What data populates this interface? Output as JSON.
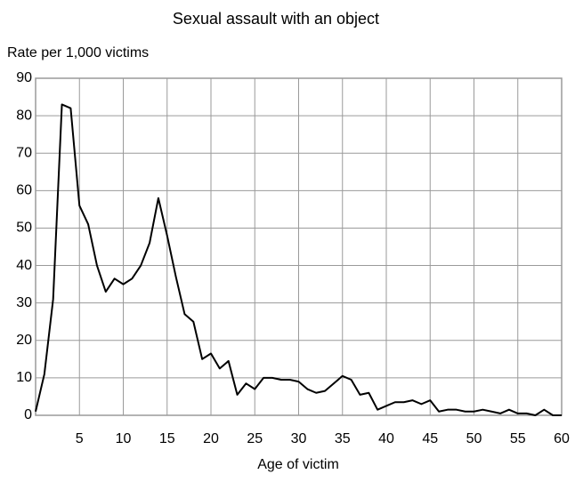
{
  "chart_data": {
    "type": "line",
    "title": "Sexual assault with an object",
    "y_label": "Rate per 1,000 victims",
    "x_label": "Age of victim",
    "x": [
      0,
      1,
      2,
      3,
      4,
      5,
      6,
      7,
      8,
      9,
      10,
      11,
      12,
      13,
      14,
      15,
      16,
      17,
      18,
      19,
      20,
      21,
      22,
      23,
      24,
      25,
      26,
      27,
      28,
      29,
      30,
      31,
      32,
      33,
      34,
      35,
      36,
      37,
      38,
      39,
      40,
      41,
      42,
      43,
      44,
      45,
      46,
      47,
      48,
      49,
      50,
      51,
      52,
      53,
      54,
      55,
      56,
      57,
      58,
      59,
      60
    ],
    "series": [
      {
        "name": "Rate",
        "color": "#000000",
        "values": [
          1,
          11,
          31,
          83,
          82,
          56,
          51,
          40,
          33,
          36.5,
          35,
          36.5,
          40,
          46,
          58,
          48,
          37,
          27,
          25,
          15,
          16.5,
          12.5,
          14.5,
          5.5,
          8.5,
          7,
          10,
          10,
          9.5,
          9.5,
          9,
          7,
          6,
          6.5,
          8.5,
          10.5,
          9.5,
          5.5,
          6,
          1.5,
          2.5,
          3.5,
          3.5,
          4,
          3,
          4,
          1,
          1.5,
          1.5,
          1,
          1,
          1.5,
          1,
          0.5,
          1.5,
          0.5,
          0.5,
          0,
          1.5,
          0,
          0
        ]
      }
    ],
    "xlim": [
      0,
      60
    ],
    "xticks": [
      5,
      10,
      15,
      20,
      25,
      30,
      35,
      40,
      45,
      50,
      55,
      60
    ],
    "ylim": [
      0,
      90
    ],
    "yticks": [
      0,
      10,
      20,
      30,
      40,
      50,
      60,
      70,
      80,
      90
    ],
    "grid": true
  }
}
